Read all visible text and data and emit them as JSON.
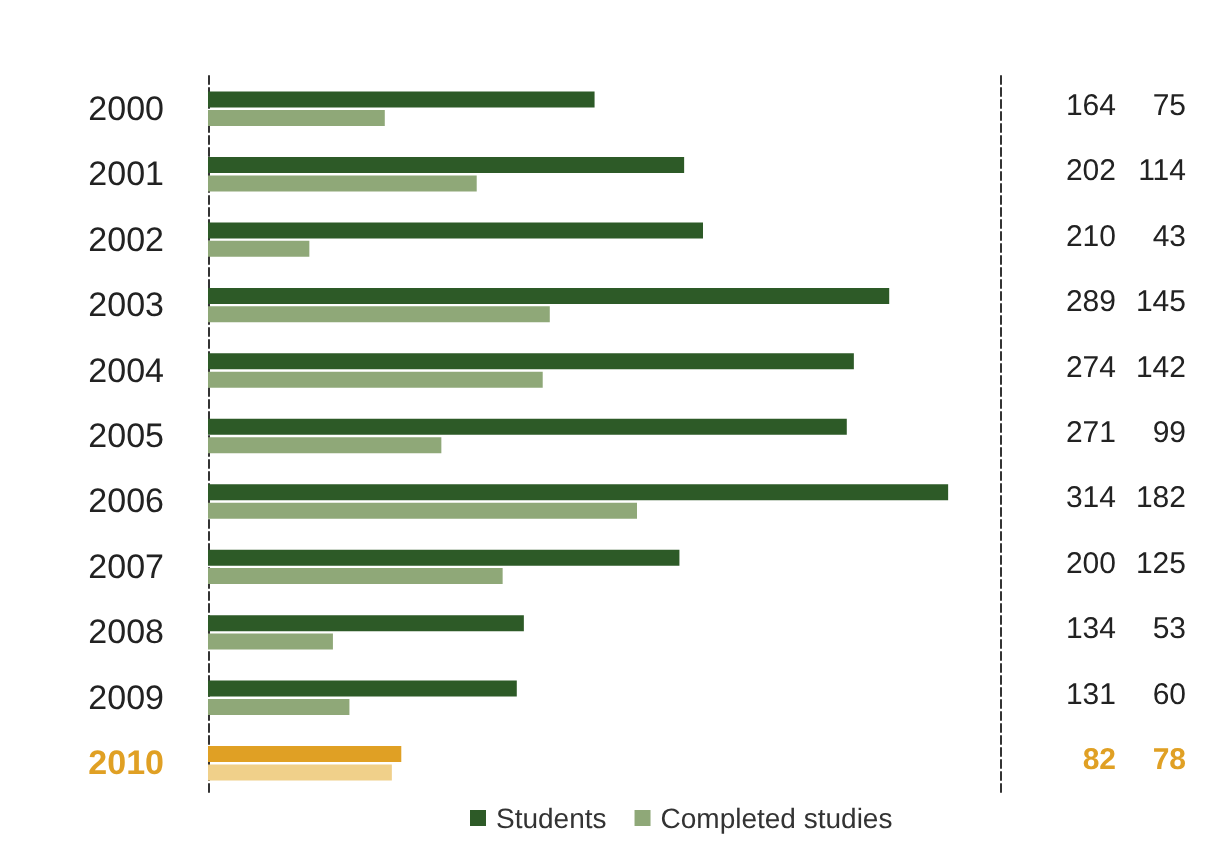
{
  "chart_data": {
    "type": "bar",
    "orientation": "horizontal",
    "categories": [
      "2000",
      "2001",
      "2002",
      "2003",
      "2004",
      "2005",
      "2006",
      "2007",
      "2008",
      "2009",
      "2010"
    ],
    "series": [
      {
        "name": "Students",
        "color": "#2d5a27",
        "colors": [
          "#2d5a27",
          "#2d5a27",
          "#2d5a27",
          "#2d5a27",
          "#2d5a27",
          "#2d5a27",
          "#2d5a27",
          "#2d5a27",
          "#2d5a27",
          "#2d5a27",
          "#e0a024"
        ],
        "values": [
          164,
          202,
          210,
          289,
          274,
          271,
          314,
          200,
          134,
          131,
          82
        ]
      },
      {
        "name": "Completed studies",
        "color": "#8fa878",
        "colors": [
          "#8fa878",
          "#8fa878",
          "#8fa878",
          "#8fa878",
          "#8fa878",
          "#8fa878",
          "#8fa878",
          "#8fa878",
          "#8fa878",
          "#8fa878",
          "#f0d08a"
        ],
        "values": [
          75,
          114,
          43,
          145,
          142,
          99,
          182,
          125,
          53,
          60,
          78
        ]
      }
    ],
    "xlim": [
      0,
      336
    ],
    "tick_labels": "y",
    "data_labels": true,
    "legend": "bottom"
  }
}
